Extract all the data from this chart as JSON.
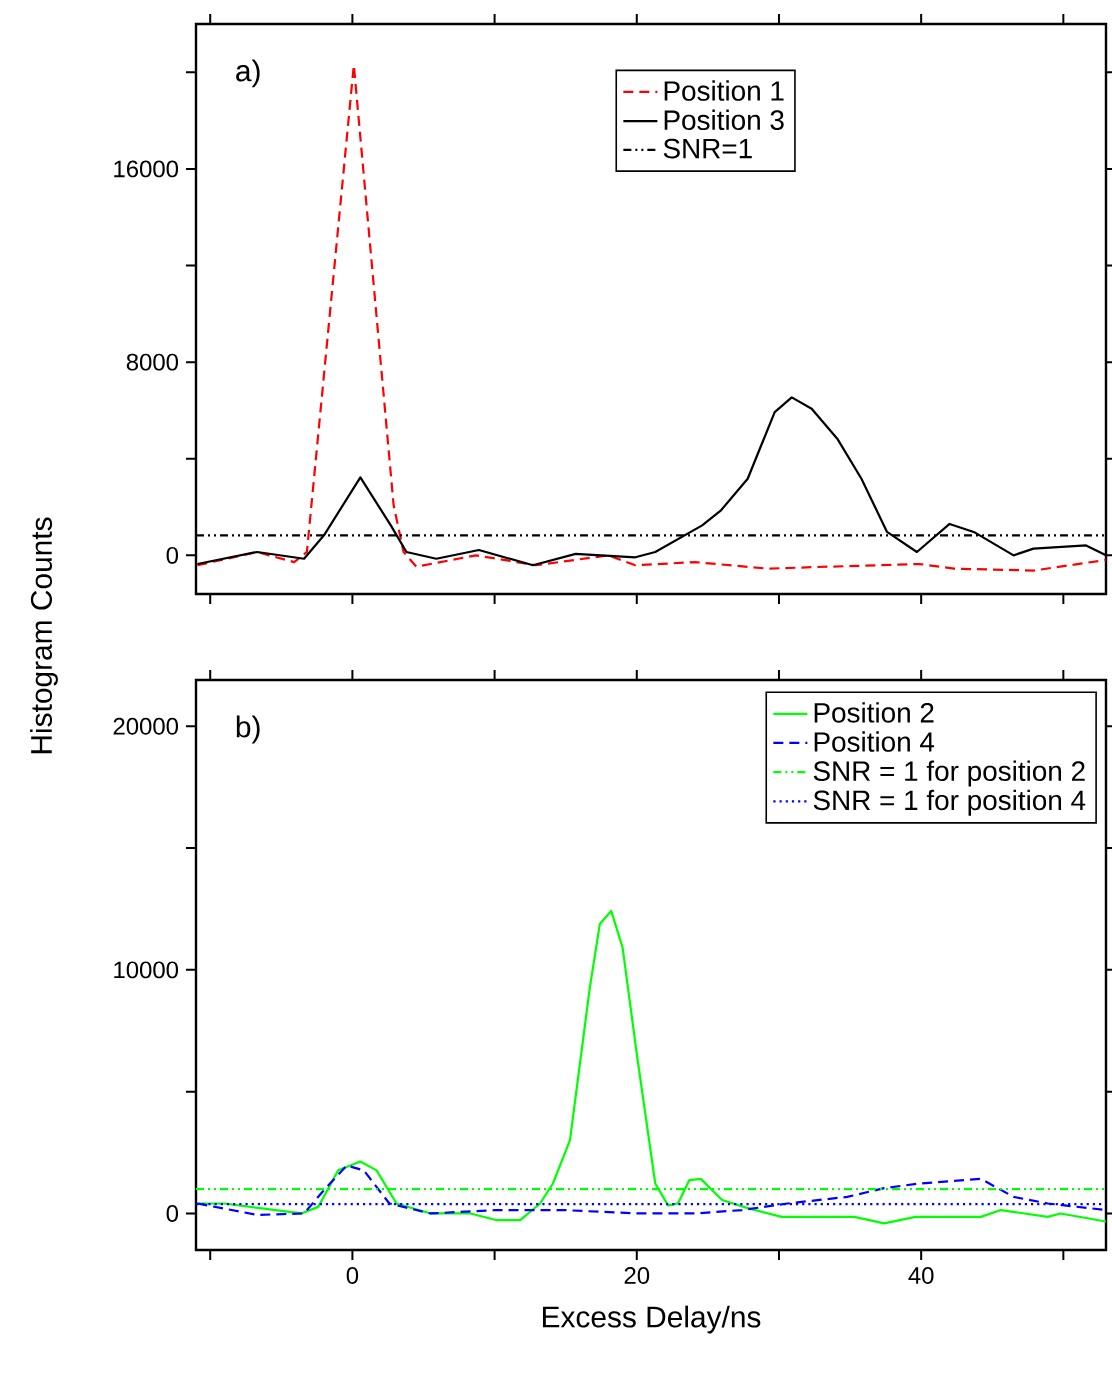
{
  "chart_data": [
    {
      "type": "line",
      "ylabel": "Histogram Counts",
      "xlim": [
        -11,
        53
      ],
      "ylim": [
        -1600,
        22000
      ],
      "xticks": [
        {
          "value": -10,
          "label": null
        },
        0,
        {
          "value": 10,
          "label": null
        },
        20,
        {
          "value": 30,
          "label": null
        },
        40,
        {
          "value": 50,
          "label": null
        }
      ],
      "yticks": [
        0,
        {
          "value": 4000,
          "label": null
        },
        8000,
        {
          "value": 12000,
          "label": null
        },
        16000,
        {
          "value": 20000,
          "label": null
        }
      ],
      "tick_labels": "y",
      "legend": "top",
      "annotations": [
        "a)"
      ],
      "series": [
        {
          "name": "Position 1",
          "color": "#ff0000",
          "line_style": "dashed",
          "x": [
            -10.9,
            -6.7,
            -4.1,
            -3.2,
            0.1,
            2.9,
            3.6,
            4.5,
            8.7,
            12.9,
            18.0,
            19.9,
            24.1,
            29.2,
            33.4,
            39.9,
            42.3,
            47.9,
            53
          ],
          "values": [
            -410,
            140,
            -280,
            140,
            20300,
            2070,
            140,
            -470,
            0,
            -410,
            0,
            -410,
            -280,
            -550,
            -470,
            -360,
            -550,
            -630,
            -190
          ]
        },
        {
          "name": "Position 3",
          "color": "#000000",
          "line_style": "solid",
          "x": [
            -10.9,
            -6.7,
            -3.4,
            -2.0,
            0.56,
            2.7,
            3.8,
            5.9,
            8.9,
            12.7,
            15.7,
            19.9,
            21.3,
            24.6,
            25.9,
            27.8,
            29.7,
            30.9,
            32.3,
            34.1,
            35.8,
            37.6,
            39.7,
            42.0,
            43.7,
            46.5,
            47.9,
            51.6,
            53
          ],
          "values": [
            -360,
            140,
            -140,
            830,
            3230,
            1240,
            140,
            -140,
            220,
            -410,
            60,
            -80,
            140,
            1240,
            1850,
            3170,
            5930,
            6540,
            6070,
            4830,
            3170,
            970,
            140,
            1300,
            970,
            0,
            280,
            410,
            0
          ]
        },
        {
          "name": "SNR=1",
          "color": "#000000",
          "line_style": "dashdotdot",
          "x": [
            -11,
            53
          ],
          "values": [
            830,
            830
          ]
        }
      ]
    },
    {
      "type": "line",
      "xlabel": "Excess Delay/ns",
      "xlim": [
        -11,
        53
      ],
      "ylim": [
        -1500,
        21900
      ],
      "xticks": [
        {
          "value": -10,
          "label": null
        },
        0,
        {
          "value": 10,
          "label": null
        },
        20,
        {
          "value": 30,
          "label": null
        },
        40,
        {
          "value": 50,
          "label": null
        }
      ],
      "yticks": [
        0,
        {
          "value": 5000,
          "label": null
        },
        10000,
        {
          "value": 15000,
          "label": null
        },
        20000
      ],
      "legend": "top right",
      "annotations": [
        "b)"
      ],
      "series": [
        {
          "name": "Position 2",
          "color": "#00ff00",
          "line_style": "solid",
          "x": [
            -10.9,
            -9.0,
            -3.6,
            -2.4,
            -1.0,
            0.56,
            1.7,
            3.1,
            5.5,
            8.3,
            10.1,
            11.8,
            13.2,
            14.1,
            15.3,
            16.7,
            17.4,
            18.2,
            19.0,
            20.0,
            21.3,
            22.2,
            22.9,
            23.7,
            24.5,
            26.0,
            27.8,
            30.2,
            35.3,
            37.4,
            39.6,
            44.2,
            45.6,
            48.9,
            49.8,
            53
          ],
          "values": [
            410,
            410,
            0,
            270,
            1770,
            2130,
            1770,
            410,
            0,
            0,
            -270,
            -270,
            410,
            1230,
            3000,
            9280,
            11880,
            12420,
            10920,
            6550,
            1230,
            330,
            410,
            1370,
            1420,
            550,
            220,
            -140,
            -140,
            -410,
            -140,
            -140,
            140,
            -140,
            0,
            -330
          ]
        },
        {
          "name": "Position 4",
          "color": "#0000ff",
          "line_style": "dashed",
          "x": [
            -10.9,
            -6.7,
            -3.4,
            -2.0,
            -0.4,
            0.8,
            2.6,
            5.5,
            10.1,
            14.8,
            20.0,
            24.1,
            27.4,
            30.6,
            34.8,
            37.4,
            39.9,
            44.2,
            46.5,
            48.9,
            53
          ],
          "values": [
            410,
            -60,
            0,
            960,
            1970,
            1770,
            410,
            0,
            140,
            140,
            0,
            0,
            140,
            410,
            680,
            1040,
            1230,
            1420,
            680,
            410,
            140
          ]
        },
        {
          "name": "SNR = 1 for position 2",
          "color": "#00ff00",
          "line_style": "dashdotdot",
          "x": [
            -11,
            53
          ],
          "values": [
            1000,
            1000
          ]
        },
        {
          "name": "SNR = 1 for position 4",
          "color": "#0000ff",
          "line_style": "dotted",
          "x": [
            -11,
            53
          ],
          "values": [
            380,
            380
          ]
        }
      ]
    }
  ]
}
